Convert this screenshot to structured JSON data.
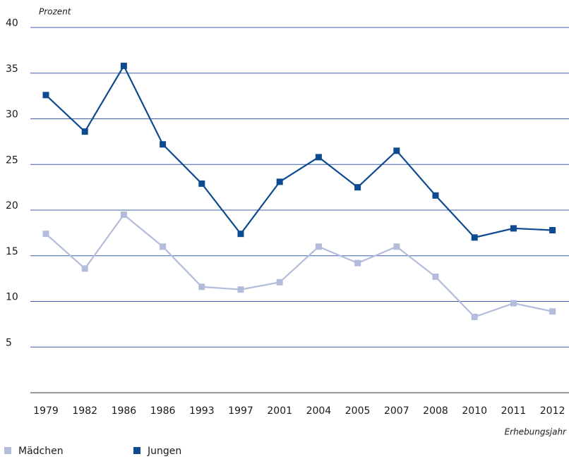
{
  "chart_data": {
    "type": "line",
    "y_axis_label": "Prozent",
    "x_axis_label": "Erhebungsjahr",
    "categories": [
      "1979",
      "1982",
      "1986",
      "1986",
      "1993",
      "1997",
      "2001",
      "2004",
      "2005",
      "2007",
      "2008",
      "2010",
      "2011",
      "2012"
    ],
    "series": [
      {
        "name": "Mädchen",
        "color": "#b4bcdc",
        "values": [
          17.4,
          13.6,
          19.5,
          16.0,
          11.6,
          11.3,
          12.1,
          16.0,
          14.2,
          16.0,
          12.7,
          8.3,
          9.8,
          8.9
        ]
      },
      {
        "name": "Jungen",
        "color": "#0d4a8f",
        "values": [
          32.6,
          28.6,
          35.8,
          27.2,
          22.9,
          17.4,
          23.1,
          25.8,
          22.5,
          26.5,
          21.6,
          17.0,
          18.0,
          17.8
        ]
      }
    ],
    "ylim": [
      0,
      40
    ],
    "yticks": [
      5,
      10,
      15,
      20,
      25,
      30,
      35,
      40
    ],
    "grid": true
  }
}
